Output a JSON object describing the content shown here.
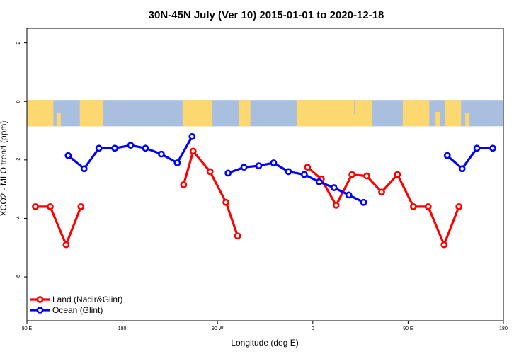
{
  "chart_data": {
    "type": "line",
    "title": "30N-45N July (Ver 10)   2015-01-01 to 2020-12-18",
    "xlabel": "Longitude (deg E)",
    "ylabel": "XCO2 - MLO trend (ppm)",
    "x_ticks": [
      {
        "value": 90,
        "label": "90 E"
      },
      {
        "value": 180,
        "label": "180"
      },
      {
        "value": 270,
        "label": "90 W"
      },
      {
        "value": 360,
        "label": "0"
      },
      {
        "value": 450,
        "label": "90 E"
      },
      {
        "value": 540,
        "label": "180"
      }
    ],
    "y_ticks": [
      {
        "value": 2,
        "label": "2"
      },
      {
        "value": 0,
        "label": "0"
      },
      {
        "value": -2,
        "label": "-2"
      },
      {
        "value": -4,
        "label": "-4"
      },
      {
        "value": -6,
        "label": "-6"
      }
    ],
    "xlim": [
      90,
      540
    ],
    "ylim": [
      -7.5,
      2.5
    ],
    "map_strip": {
      "lat_range": "30N-45N",
      "ocean_color": "#a8bfe0",
      "land_color": "#fdd870"
    },
    "series": [
      {
        "name": "Land (Nadir&Glint)",
        "color": "#ff0000",
        "segments": [
          [
            [
              98,
              -3.6
            ],
            [
              112,
              -3.6
            ],
            [
              127,
              -4.9
            ],
            [
              141,
              -3.6
            ]
          ],
          [
            [
              238,
              -2.85
            ],
            [
              247,
              -1.7
            ],
            [
              263,
              -2.4
            ],
            [
              278,
              -3.45
            ],
            [
              289,
              -4.6
            ]
          ],
          [
            [
              355,
              -2.25
            ],
            [
              368,
              -2.65
            ],
            [
              382,
              -3.55
            ],
            [
              397,
              -2.5
            ],
            [
              411,
              -2.55
            ],
            [
              425,
              -3.1
            ],
            [
              440,
              -2.5
            ],
            [
              455,
              -3.6
            ],
            [
              469,
              -3.6
            ],
            [
              484,
              -4.9
            ],
            [
              498,
              -3.6
            ]
          ]
        ]
      },
      {
        "name": "Ocean (Glint)",
        "color": "#0000ff",
        "segments": [
          [
            [
              129,
              -1.85
            ],
            [
              144,
              -2.3
            ],
            [
              158,
              -1.6
            ],
            [
              173,
              -1.6
            ],
            [
              188,
              -1.5
            ],
            [
              202,
              -1.6
            ],
            [
              217,
              -1.8
            ],
            [
              232,
              -2.1
            ],
            [
              246,
              -1.2
            ]
          ],
          [
            [
              280,
              -2.45
            ],
            [
              295,
              -2.25
            ],
            [
              309,
              -2.2
            ],
            [
              323,
              -2.1
            ],
            [
              337,
              -2.4
            ],
            [
              352,
              -2.5
            ],
            [
              366,
              -2.75
            ],
            [
              380,
              -2.95
            ],
            [
              394,
              -3.2
            ],
            [
              408,
              -3.45
            ]
          ],
          [
            [
              487,
              -1.85
            ],
            [
              501,
              -2.3
            ],
            [
              515,
              -1.6
            ],
            [
              530,
              -1.6
            ]
          ]
        ]
      }
    ],
    "legend": {
      "position": "bottom-left"
    }
  }
}
